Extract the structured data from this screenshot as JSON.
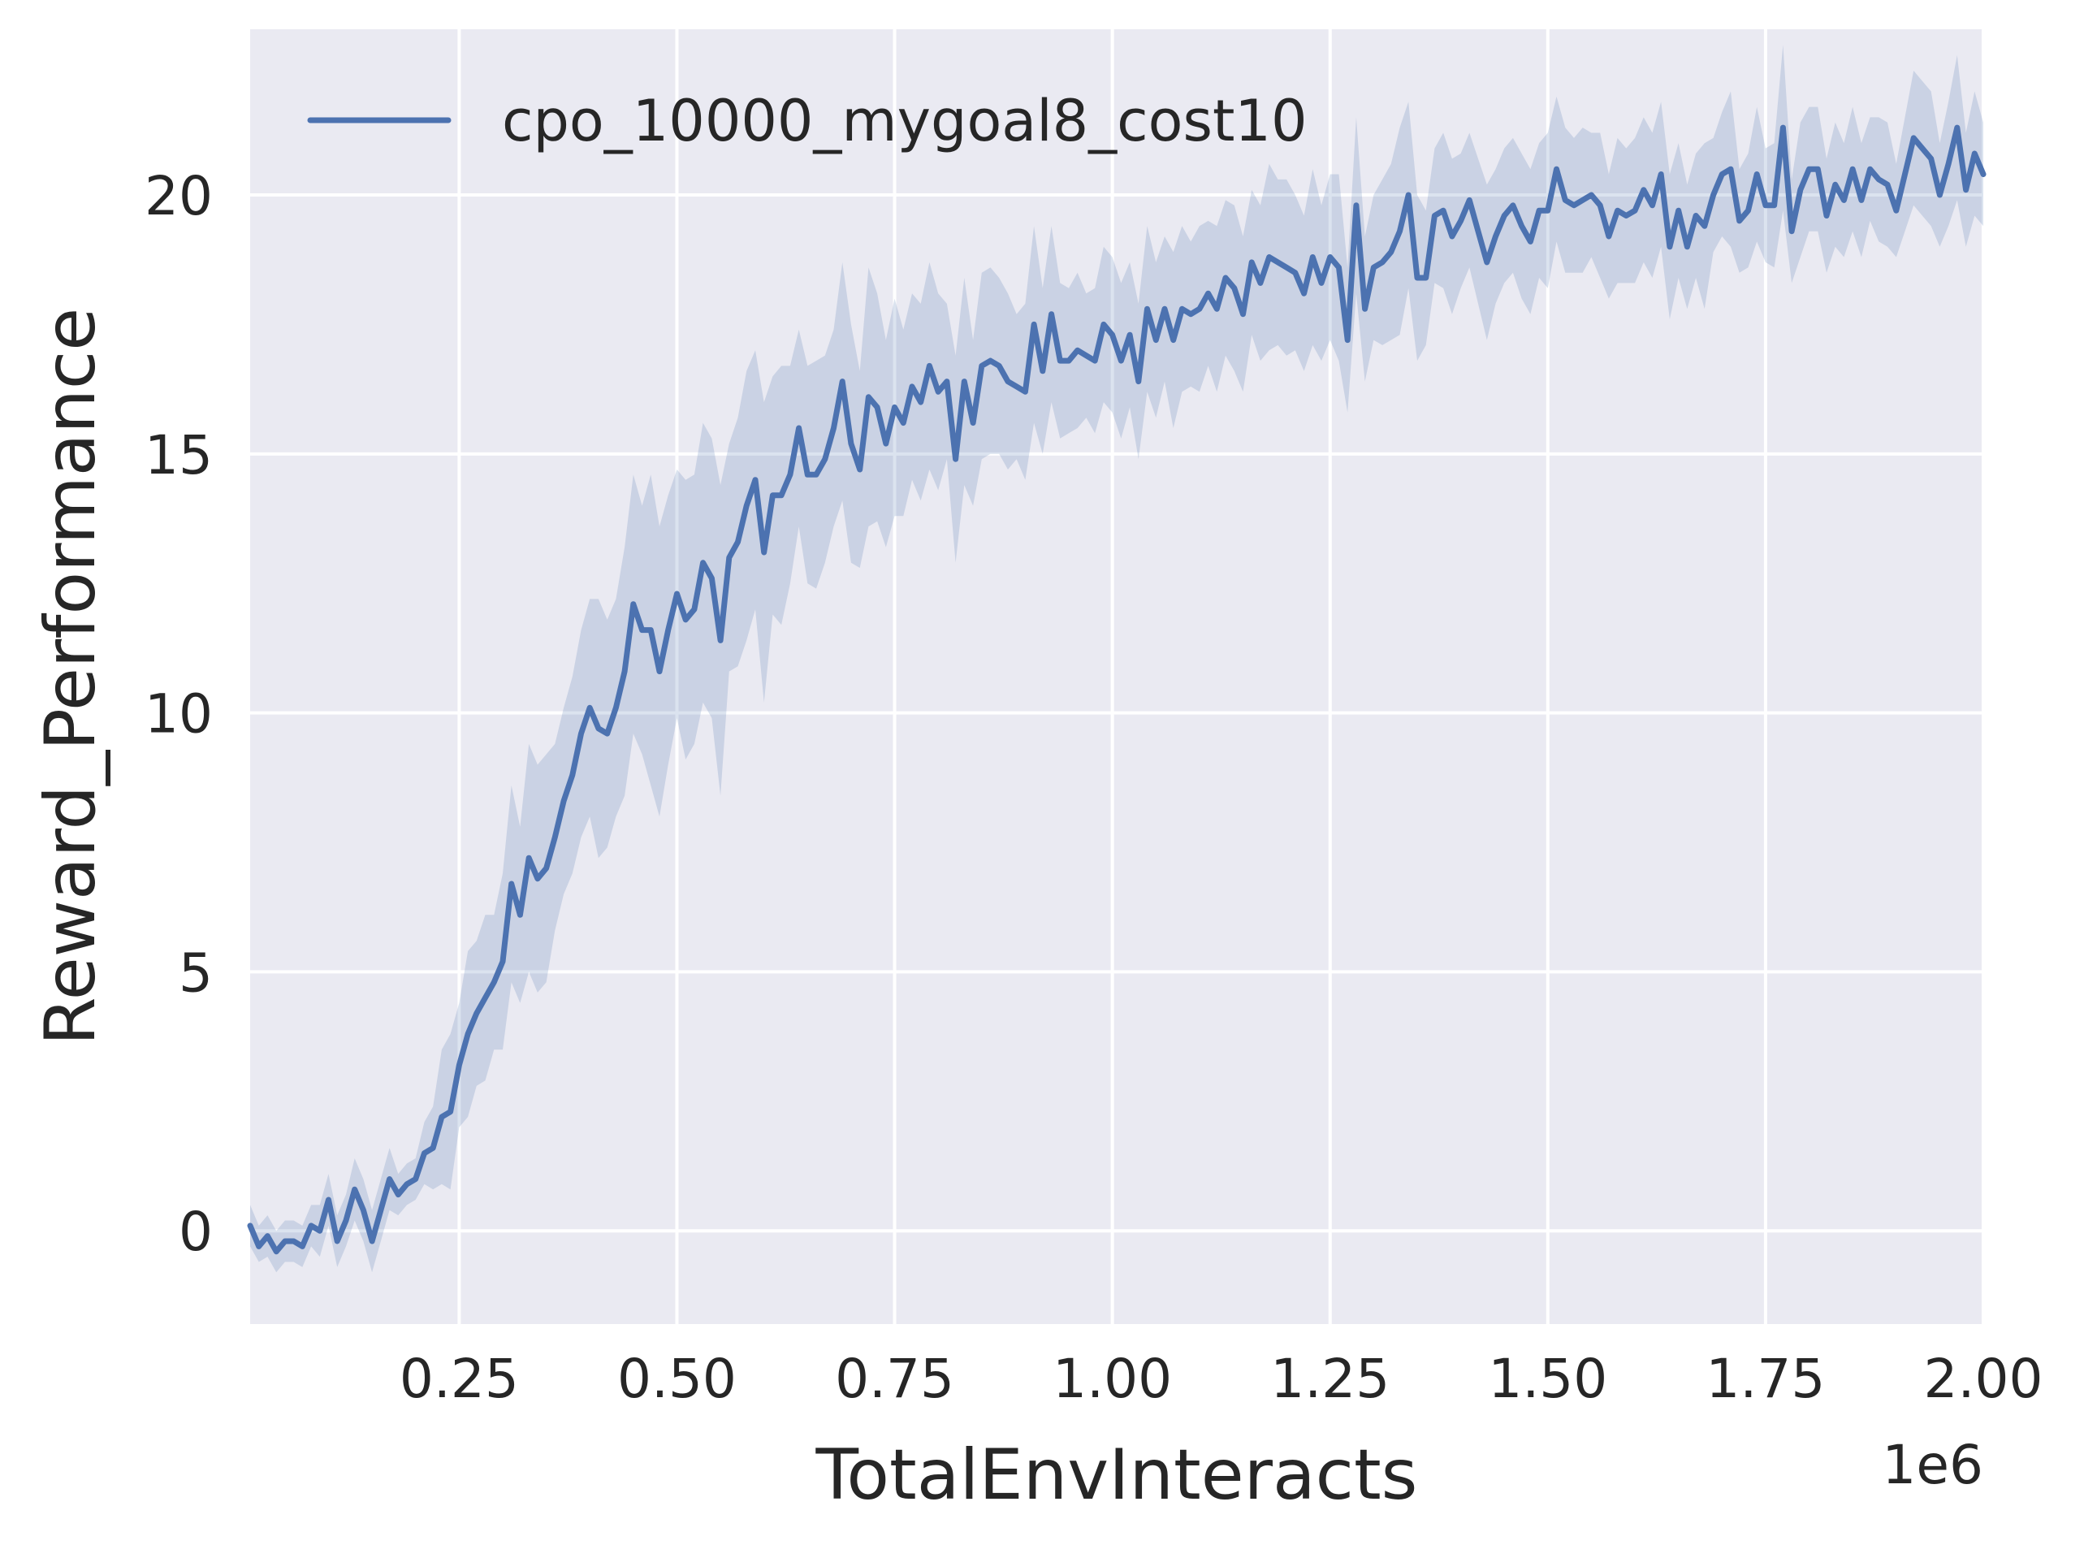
{
  "chart_data": {
    "type": "line",
    "title": "",
    "xlabel": "TotalEnvInteracts",
    "ylabel": "Reward_Performance",
    "x_offset_label": "1e6",
    "xlim": [
      0.01,
      2.0
    ],
    "ylim": [
      -1.8,
      23.2
    ],
    "x_ticks": [
      0.25,
      0.5,
      0.75,
      1.0,
      1.25,
      1.5,
      1.75,
      2.0
    ],
    "x_tick_labels": [
      "0.25",
      "0.50",
      "0.75",
      "1.00",
      "1.25",
      "1.50",
      "1.75",
      "2.00"
    ],
    "y_ticks": [
      0,
      5,
      10,
      15,
      20
    ],
    "y_tick_labels": [
      "0",
      "5",
      "10",
      "15",
      "20"
    ],
    "grid": true,
    "legend_position": "top-left",
    "colors": {
      "line": "#4c72b0",
      "band": "#4c72b0",
      "plot_bg": "#eaeaf2",
      "grid": "#ffffff"
    },
    "series": [
      {
        "name": "cpo_10000_mygoal8_cost10",
        "x": [
          0.01,
          0.02,
          0.03,
          0.04,
          0.05,
          0.06,
          0.07,
          0.08,
          0.09,
          0.1,
          0.11,
          0.12,
          0.13,
          0.14,
          0.15,
          0.16,
          0.17,
          0.18,
          0.19,
          0.2,
          0.21,
          0.22,
          0.23,
          0.24,
          0.25,
          0.26,
          0.27,
          0.28,
          0.29,
          0.3,
          0.31,
          0.32,
          0.33,
          0.34,
          0.35,
          0.36,
          0.37,
          0.38,
          0.39,
          0.4,
          0.41,
          0.42,
          0.43,
          0.44,
          0.45,
          0.46,
          0.47,
          0.48,
          0.49,
          0.5,
          0.51,
          0.52,
          0.53,
          0.54,
          0.55,
          0.56,
          0.57,
          0.58,
          0.59,
          0.6,
          0.61,
          0.62,
          0.63,
          0.64,
          0.65,
          0.66,
          0.67,
          0.68,
          0.69,
          0.7,
          0.71,
          0.72,
          0.73,
          0.74,
          0.75,
          0.76,
          0.77,
          0.78,
          0.79,
          0.8,
          0.81,
          0.82,
          0.83,
          0.84,
          0.85,
          0.86,
          0.87,
          0.88,
          0.89,
          0.9,
          0.91,
          0.92,
          0.93,
          0.94,
          0.95,
          0.96,
          0.97,
          0.98,
          0.99,
          1.0,
          1.01,
          1.02,
          1.03,
          1.04,
          1.05,
          1.06,
          1.07,
          1.08,
          1.09,
          1.1,
          1.11,
          1.12,
          1.13,
          1.14,
          1.15,
          1.16,
          1.17,
          1.18,
          1.19,
          1.2,
          1.21,
          1.22,
          1.23,
          1.24,
          1.25,
          1.26,
          1.27,
          1.28,
          1.29,
          1.3,
          1.31,
          1.32,
          1.33,
          1.34,
          1.35,
          1.36,
          1.37,
          1.38,
          1.39,
          1.4,
          1.41,
          1.42,
          1.43,
          1.44,
          1.45,
          1.46,
          1.47,
          1.48,
          1.49,
          1.5,
          1.51,
          1.52,
          1.53,
          1.54,
          1.55,
          1.56,
          1.57,
          1.58,
          1.59,
          1.6,
          1.61,
          1.62,
          1.63,
          1.64,
          1.65,
          1.66,
          1.67,
          1.68,
          1.69,
          1.7,
          1.71,
          1.72,
          1.73,
          1.74,
          1.75,
          1.76,
          1.77,
          1.78,
          1.79,
          1.8,
          1.81,
          1.82,
          1.83,
          1.84,
          1.85,
          1.86,
          1.87,
          1.88,
          1.89,
          1.9,
          1.91,
          1.92,
          1.93,
          1.94,
          1.95,
          1.96,
          1.97,
          1.98,
          1.99,
          2.0
        ],
        "y": [
          0.1,
          -0.3,
          -0.1,
          -0.4,
          -0.2,
          -0.2,
          -0.3,
          0.1,
          0.0,
          0.6,
          -0.2,
          0.2,
          0.8,
          0.4,
          -0.2,
          0.4,
          1.0,
          0.7,
          0.9,
          1.0,
          1.5,
          1.6,
          2.2,
          2.3,
          3.2,
          3.8,
          4.2,
          4.5,
          4.8,
          5.2,
          6.7,
          6.1,
          7.2,
          6.8,
          7.0,
          7.6,
          8.3,
          8.8,
          9.6,
          10.1,
          9.7,
          9.6,
          10.1,
          10.8,
          12.1,
          11.6,
          11.6,
          10.8,
          11.6,
          12.3,
          11.8,
          12.0,
          12.9,
          12.6,
          11.4,
          13.0,
          13.3,
          14.0,
          14.5,
          13.1,
          14.2,
          14.2,
          14.6,
          15.5,
          14.6,
          14.6,
          14.9,
          15.5,
          16.4,
          15.2,
          14.7,
          16.1,
          15.9,
          15.2,
          15.9,
          15.6,
          16.3,
          16.0,
          16.7,
          16.2,
          16.4,
          14.9,
          16.4,
          15.6,
          16.7,
          16.8,
          16.7,
          16.4,
          16.3,
          16.2,
          17.5,
          16.6,
          17.7,
          16.8,
          16.8,
          17.0,
          16.9,
          16.8,
          17.5,
          17.3,
          16.8,
          17.3,
          16.4,
          17.8,
          17.2,
          17.8,
          17.2,
          17.8,
          17.7,
          17.8,
          18.1,
          17.8,
          18.4,
          18.2,
          17.7,
          18.7,
          18.3,
          18.8,
          18.7,
          18.6,
          18.5,
          18.1,
          18.8,
          18.3,
          18.8,
          18.6,
          17.2,
          19.8,
          17.8,
          18.6,
          18.7,
          18.9,
          19.3,
          20.0,
          18.4,
          18.4,
          19.6,
          19.7,
          19.2,
          19.5,
          19.9,
          19.3,
          18.7,
          19.2,
          19.6,
          19.8,
          19.4,
          19.1,
          19.7,
          19.7,
          20.5,
          19.9,
          19.8,
          19.9,
          20.0,
          19.8,
          19.2,
          19.7,
          19.6,
          19.7,
          20.1,
          19.8,
          20.4,
          19.0,
          19.7,
          19.0,
          19.6,
          19.4,
          20.0,
          20.4,
          20.5,
          19.5,
          19.7,
          20.4,
          19.8,
          19.8,
          21.3,
          19.3,
          20.1,
          20.5,
          20.5,
          19.6,
          20.2,
          19.9,
          20.5,
          19.9,
          20.5,
          20.3,
          20.2,
          19.7,
          20.4,
          21.1,
          20.9,
          20.7,
          20.0,
          20.6,
          21.3,
          20.1,
          20.8,
          20.4
        ],
        "lower": [
          -0.3,
          -0.6,
          -0.5,
          -0.8,
          -0.6,
          -0.6,
          -0.7,
          -0.3,
          -0.5,
          0.1,
          -0.7,
          -0.3,
          0.2,
          -0.2,
          -0.8,
          -0.2,
          0.4,
          0.3,
          0.5,
          0.6,
          0.9,
          0.8,
          0.9,
          0.8,
          2.0,
          2.2,
          2.8,
          2.9,
          3.5,
          3.5,
          4.8,
          4.4,
          5.0,
          4.6,
          4.8,
          5.8,
          6.5,
          6.9,
          7.6,
          8.0,
          7.2,
          7.4,
          8.0,
          8.4,
          9.6,
          9.2,
          8.6,
          8.0,
          9.0,
          9.9,
          9.1,
          9.4,
          10.2,
          9.9,
          8.4,
          10.8,
          10.9,
          11.4,
          12.0,
          10.2,
          11.9,
          11.7,
          12.5,
          13.6,
          12.5,
          12.4,
          12.9,
          13.6,
          14.1,
          12.9,
          12.8,
          13.6,
          13.7,
          13.2,
          13.8,
          13.8,
          14.5,
          14.1,
          14.7,
          14.3,
          14.9,
          12.9,
          14.4,
          14.0,
          14.9,
          15.0,
          15.0,
          14.7,
          14.9,
          14.5,
          15.6,
          15.0,
          16.0,
          15.3,
          15.4,
          15.5,
          15.7,
          15.4,
          16.0,
          15.8,
          15.3,
          15.9,
          14.9,
          16.2,
          15.7,
          16.4,
          15.5,
          16.2,
          16.3,
          16.2,
          16.7,
          16.2,
          16.9,
          16.6,
          16.2,
          17.3,
          16.8,
          17.0,
          17.1,
          16.9,
          17.0,
          16.6,
          17.1,
          16.8,
          17.2,
          16.8,
          15.8,
          18.1,
          16.4,
          17.2,
          17.1,
          17.2,
          17.3,
          18.2,
          16.8,
          17.1,
          18.3,
          18.2,
          17.7,
          18.2,
          18.6,
          17.9,
          17.2,
          17.9,
          18.3,
          18.5,
          18.0,
          17.7,
          18.4,
          18.2,
          19.1,
          18.5,
          18.5,
          18.5,
          18.8,
          18.4,
          18.0,
          18.3,
          18.3,
          18.3,
          18.7,
          18.4,
          19.0,
          17.6,
          18.4,
          17.8,
          18.4,
          17.8,
          18.9,
          19.2,
          19.0,
          18.5,
          18.6,
          19.1,
          18.7,
          18.6,
          19.7,
          18.3,
          18.8,
          19.3,
          19.3,
          18.5,
          19.0,
          18.8,
          19.3,
          18.8,
          19.5,
          19.1,
          19.0,
          18.8,
          19.3,
          19.8,
          19.6,
          19.4,
          19.0,
          19.4,
          19.9,
          19.0,
          19.6,
          19.4
        ],
        "upper": [
          0.5,
          0.1,
          0.3,
          0.0,
          0.2,
          0.2,
          0.1,
          0.5,
          0.5,
          1.1,
          0.3,
          0.7,
          1.4,
          1.0,
          0.4,
          1.0,
          1.6,
          1.1,
          1.3,
          1.4,
          2.1,
          2.4,
          3.5,
          3.8,
          4.4,
          5.4,
          5.6,
          6.1,
          6.1,
          6.9,
          8.6,
          7.8,
          9.4,
          9.0,
          9.2,
          9.4,
          10.1,
          10.7,
          11.6,
          12.2,
          12.2,
          11.8,
          12.2,
          13.2,
          14.6,
          14.0,
          14.6,
          13.6,
          14.2,
          14.7,
          14.5,
          14.6,
          15.6,
          15.3,
          14.4,
          15.2,
          15.7,
          16.6,
          17.0,
          16.0,
          16.5,
          16.7,
          16.7,
          17.4,
          16.7,
          16.8,
          16.9,
          17.4,
          18.7,
          17.5,
          16.6,
          18.6,
          18.1,
          17.2,
          18.0,
          17.4,
          18.1,
          17.9,
          18.7,
          18.1,
          17.9,
          16.9,
          18.4,
          17.2,
          18.5,
          18.6,
          18.4,
          18.1,
          17.7,
          17.9,
          19.4,
          18.2,
          19.4,
          18.3,
          18.2,
          18.5,
          18.1,
          18.2,
          19.0,
          18.8,
          18.3,
          18.7,
          17.9,
          19.4,
          18.7,
          19.2,
          18.9,
          19.4,
          19.1,
          19.4,
          19.5,
          19.4,
          19.9,
          19.8,
          19.2,
          20.1,
          19.8,
          20.6,
          20.3,
          20.3,
          20.0,
          19.6,
          20.5,
          19.8,
          20.4,
          20.4,
          18.6,
          21.5,
          19.2,
          20.0,
          20.3,
          20.6,
          21.3,
          21.8,
          20.0,
          19.7,
          20.9,
          21.2,
          20.7,
          20.8,
          21.2,
          20.7,
          20.2,
          20.5,
          20.9,
          21.1,
          20.8,
          20.5,
          21.0,
          21.2,
          21.9,
          21.3,
          21.1,
          21.3,
          21.2,
          21.2,
          20.4,
          21.1,
          20.9,
          21.1,
          21.5,
          21.2,
          21.8,
          20.4,
          21.0,
          20.2,
          20.8,
          21.0,
          21.1,
          21.6,
          22.0,
          20.5,
          20.8,
          21.7,
          20.9,
          21.0,
          22.9,
          20.3,
          21.4,
          21.7,
          21.7,
          20.7,
          21.4,
          21.0,
          21.7,
          21.0,
          21.5,
          21.5,
          21.4,
          20.6,
          21.5,
          22.4,
          22.2,
          22.0,
          21.0,
          21.8,
          22.7,
          21.2,
          22.0,
          21.4
        ]
      }
    ]
  }
}
